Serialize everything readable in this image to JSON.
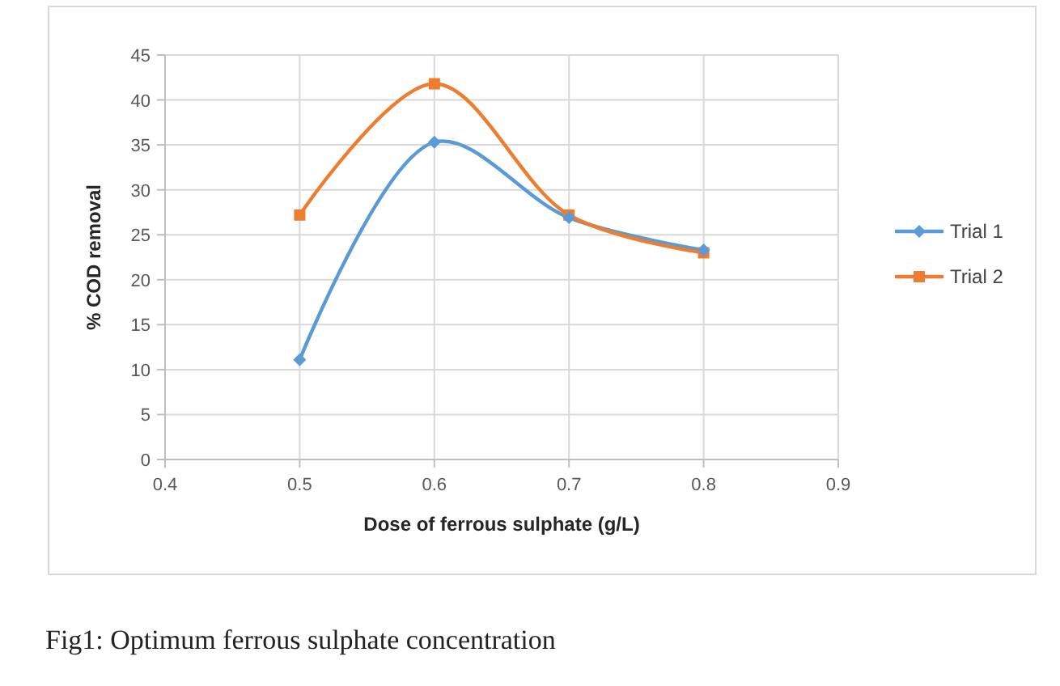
{
  "chart_data": {
    "type": "line",
    "xlabel": "Dose of ferrous sulphate (g/L)",
    "ylabel": "% COD removal",
    "x": [
      0.5,
      0.6,
      0.7,
      0.8
    ],
    "series": [
      {
        "name": "Trial 1",
        "color": "#5b9bd5",
        "marker": "diamond",
        "values": [
          11.1,
          35.3,
          26.9,
          23.3
        ]
      },
      {
        "name": "Trial 2",
        "color": "#ed7d31",
        "marker": "square",
        "values": [
          27.2,
          41.8,
          27.2,
          23.0
        ]
      }
    ],
    "xlim": [
      0.4,
      0.9
    ],
    "xticks": [
      0.4,
      0.5,
      0.6,
      0.7,
      0.8,
      0.9
    ],
    "ylim": [
      0,
      45
    ],
    "yticks": [
      0,
      5,
      10,
      15,
      20,
      25,
      30,
      35,
      40,
      45
    ],
    "grid": true,
    "legend": "right",
    "annotations": [
      "Fig1: Optimum ferrous sulphate concentration"
    ]
  }
}
